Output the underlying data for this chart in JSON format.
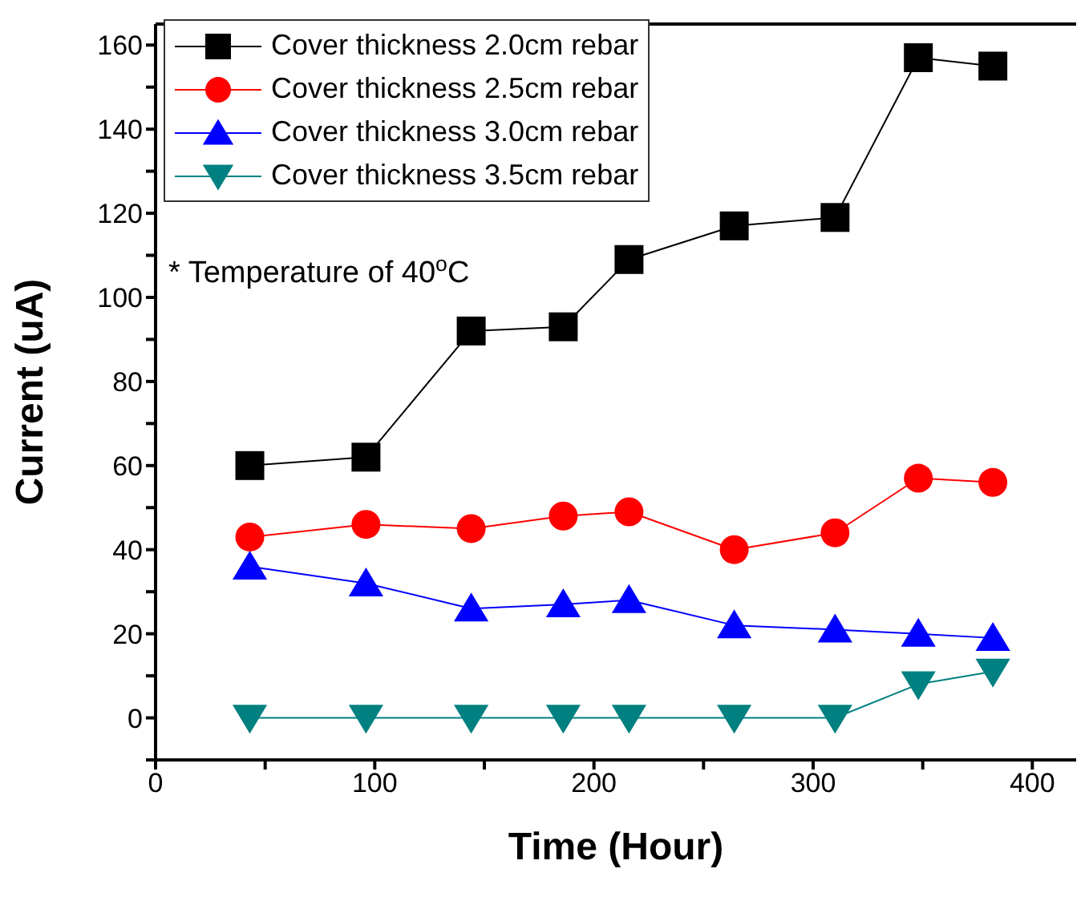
{
  "chart_data": {
    "type": "line",
    "xlabel": "Time (Hour)",
    "ylabel": "Current (uA)",
    "x": [
      43,
      96,
      144,
      186,
      216,
      264,
      310,
      348,
      382
    ],
    "series": [
      {
        "name": "Cover thickness 2.0cm rebar",
        "color": "#000000",
        "marker": "square",
        "values": [
          60,
          62,
          92,
          93,
          109,
          117,
          119,
          157,
          155
        ]
      },
      {
        "name": "Cover thickness 2.5cm rebar",
        "color": "#ff0000",
        "marker": "circle",
        "values": [
          43,
          46,
          45,
          48,
          49,
          40,
          44,
          57,
          56
        ]
      },
      {
        "name": "Cover thickness 3.0cm rebar",
        "color": "#0000ff",
        "marker": "triangle",
        "values": [
          36,
          32,
          26,
          27,
          28,
          22,
          21,
          20,
          19
        ]
      },
      {
        "name": "Cover thickness 3.5cm rebar",
        "color": "#008080",
        "marker": "triangle-down",
        "values": [
          0,
          0,
          0,
          0,
          0,
          0,
          0,
          8,
          11
        ]
      }
    ],
    "xlim": [
      0,
      420
    ],
    "xticks": [
      0,
      {
        "value": 50,
        "label": null
      },
      100,
      {
        "value": 150,
        "label": null
      },
      200,
      {
        "value": 250,
        "label": null
      },
      300,
      {
        "value": 350,
        "label": null
      },
      400
    ],
    "ylim": [
      -10,
      165
    ],
    "yticks": [
      {
        "value": -10,
        "label": null
      },
      0,
      {
        "value": 10,
        "label": null
      },
      20,
      {
        "value": 30,
        "label": null
      },
      40,
      {
        "value": 50,
        "label": null
      },
      60,
      {
        "value": 70,
        "label": null
      },
      80,
      {
        "value": 90,
        "label": null
      },
      100,
      {
        "value": 110,
        "label": null
      },
      120,
      {
        "value": 130,
        "label": null
      },
      140,
      {
        "value": 150,
        "label": null
      },
      160
    ],
    "annotations": [
      "* Temperature of 40$^{o}$C"
    ],
    "legend": "top left",
    "grid": false,
    "line_style": "solid"
  }
}
